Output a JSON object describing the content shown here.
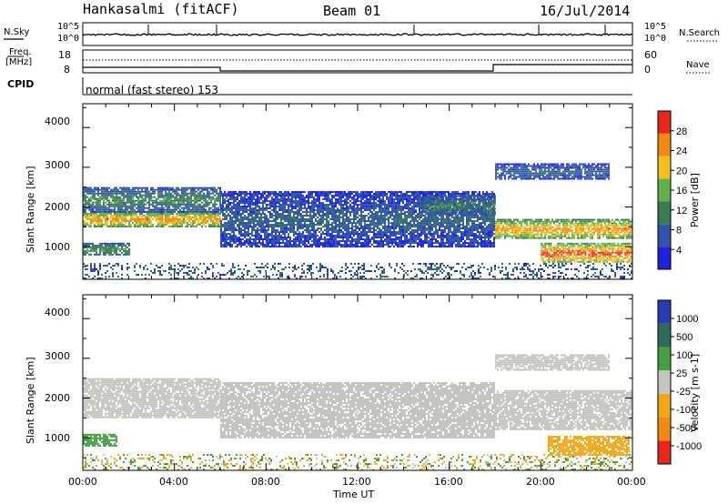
{
  "header": {
    "station": "Hankasalmi (fitACF)",
    "beam": "Beam 01",
    "date": "16/Jul/2014"
  },
  "noise_panel": {
    "left_label": "N.Sky",
    "right_label": "N.Search",
    "tick_top": "10^5",
    "tick_bottom": "10^0"
  },
  "freq_panel": {
    "left_label_line1": "Freq.",
    "left_label_line2": "[MHz]",
    "right_label": "Nave",
    "left_ticks": [
      "18",
      "8"
    ],
    "right_ticks": [
      "60",
      "0"
    ]
  },
  "cpid": {
    "label": "CPID",
    "value": "normal (fast stereo) 153"
  },
  "power_panel": {
    "ylabel": "Slant Range [km]",
    "yticks": [
      "4000",
      "3000",
      "2000",
      "1000"
    ],
    "colorbar_label": "Power [dB]",
    "colorbar_ticks": [
      "28",
      "24",
      "20",
      "16",
      "12",
      "8",
      "4"
    ],
    "colors": [
      "#1e22dc",
      "#2f54a8",
      "#3a7a52",
      "#62b04a",
      "#f0c020",
      "#f08a10",
      "#e82818"
    ]
  },
  "velocity_panel": {
    "ylabel": "Slant Range [km]",
    "yticks": [
      "4000",
      "3000",
      "2000",
      "1000"
    ],
    "colorbar_label": "Velocity [m s-1]",
    "colorbar_ticks": [
      "1000",
      "500",
      "100",
      "25",
      "-25",
      "-100",
      "-500",
      "-1000"
    ],
    "colors": [
      "#2a3cb0",
      "#2e6a5a",
      "#45a045",
      "#c4c4be",
      "#f0a818",
      "#f08a10",
      "#e82818"
    ]
  },
  "xaxis": {
    "label": "Time UT",
    "ticks": [
      "00:00",
      "04:00",
      "08:00",
      "12:00",
      "16:00",
      "20:00",
      "00:00"
    ]
  },
  "chart_data": [
    {
      "type": "heatmap",
      "title": "Power",
      "xlabel": "Time UT",
      "ylabel": "Slant Range [km]",
      "xlim_hours": [
        0,
        24
      ],
      "ylim": [
        180,
        4600
      ],
      "colorbar": {
        "label": "Power [dB]",
        "range": [
          0,
          30
        ],
        "ticks": [
          4,
          8,
          12,
          16,
          20,
          24,
          28
        ]
      },
      "bands": [
        {
          "t_start": 0,
          "t_end": 6,
          "range_low": 1500,
          "range_high": 1900,
          "power_db": 24
        },
        {
          "t_start": 0,
          "t_end": 6,
          "range_low": 1900,
          "range_high": 2500,
          "power_db": 12
        },
        {
          "t_start": 0,
          "t_end": 2,
          "range_low": 800,
          "range_high": 1100,
          "power_db": 14
        },
        {
          "t_start": 6,
          "t_end": 18,
          "range_low": 1000,
          "range_high": 2400,
          "power_db": 8
        },
        {
          "t_start": 14.7,
          "t_end": 18,
          "range_low": 1800,
          "range_high": 2300,
          "power_db": 12
        },
        {
          "t_start": 18,
          "t_end": 24,
          "range_low": 1200,
          "range_high": 1700,
          "power_db": 24
        },
        {
          "t_start": 20,
          "t_end": 24,
          "range_low": 600,
          "range_high": 1100,
          "power_db": 28
        },
        {
          "t_start": 18,
          "t_end": 23,
          "range_low": 2700,
          "range_high": 3100,
          "power_db": 8
        }
      ]
    },
    {
      "type": "heatmap",
      "title": "Velocity",
      "xlabel": "Time UT",
      "ylabel": "Slant Range [km]",
      "xlim_hours": [
        0,
        24
      ],
      "ylim": [
        180,
        4600
      ],
      "colorbar": {
        "label": "Velocity [m s-1]",
        "range": [
          -1000,
          1000
        ],
        "ticks": [
          1000,
          500,
          100,
          25,
          -25,
          -100,
          -500,
          -1000
        ]
      },
      "bands": [
        {
          "t_start": 0,
          "t_end": 6,
          "range_low": 1500,
          "range_high": 2500,
          "velocity": 0
        },
        {
          "t_start": 0,
          "t_end": 1.5,
          "range_low": 800,
          "range_high": 1100,
          "velocity": 60
        },
        {
          "t_start": 6,
          "t_end": 18,
          "range_low": 1000,
          "range_high": 2400,
          "velocity": 0
        },
        {
          "t_start": 18,
          "t_end": 24,
          "range_low": 1200,
          "range_high": 2200,
          "velocity": 0
        },
        {
          "t_start": 20.3,
          "t_end": 23.8,
          "range_low": 550,
          "range_high": 1050,
          "velocity": -60
        },
        {
          "t_start": 18,
          "t_end": 23,
          "range_low": 2700,
          "range_high": 3100,
          "velocity": 0
        }
      ]
    }
  ]
}
